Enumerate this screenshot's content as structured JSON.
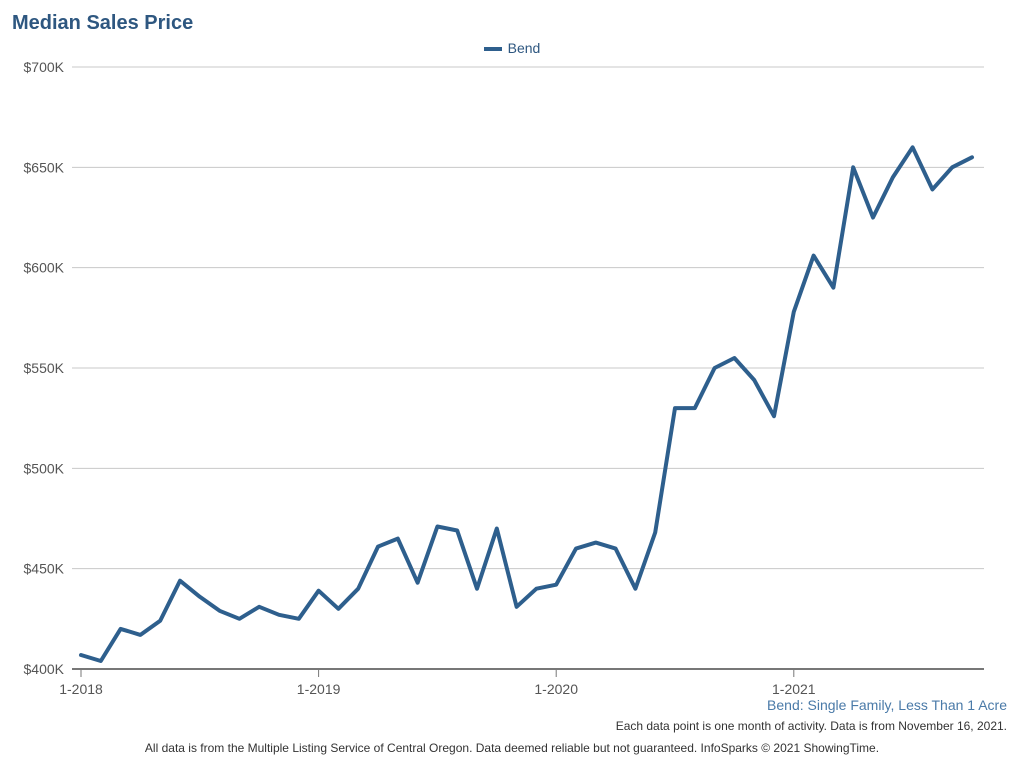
{
  "chart_data": {
    "type": "line",
    "title": "Median Sales Price",
    "legend": [
      "Bend"
    ],
    "series": [
      {
        "name": "Bend",
        "color": "#2e5f8d",
        "values": [
          407000,
          404000,
          420000,
          417000,
          424000,
          444000,
          436000,
          429000,
          425000,
          431000,
          427000,
          425000,
          439000,
          430000,
          440000,
          461000,
          465000,
          443000,
          471000,
          469000,
          440000,
          470000,
          431000,
          440000,
          442000,
          460000,
          463000,
          460000,
          440000,
          468000,
          530000,
          530000,
          550000,
          555000,
          544000,
          526000,
          578000,
          606000,
          590000,
          650000,
          625000,
          645000,
          660000,
          639000,
          650000,
          655000
        ]
      }
    ],
    "x_tick_labels": [
      "1-2018",
      "1-2019",
      "1-2020",
      "1-2021"
    ],
    "x_tick_indices": [
      0,
      12,
      24,
      36
    ],
    "y_tick_labels": [
      "$400K",
      "$450K",
      "$500K",
      "$550K",
      "$600K",
      "$650K",
      "$700K"
    ],
    "ylim": [
      400000,
      700000
    ],
    "ystep": 50000,
    "grid": true
  },
  "subtitle": "Bend: Single Family, Less Than 1 Acre",
  "note": "Each data point is one month of activity. Data is from November 16, 2021.",
  "footer": "All data is from the Multiple Listing Service of Central Oregon. Data deemed reliable but not guaranteed. InfoSparks © 2021 ShowingTime."
}
